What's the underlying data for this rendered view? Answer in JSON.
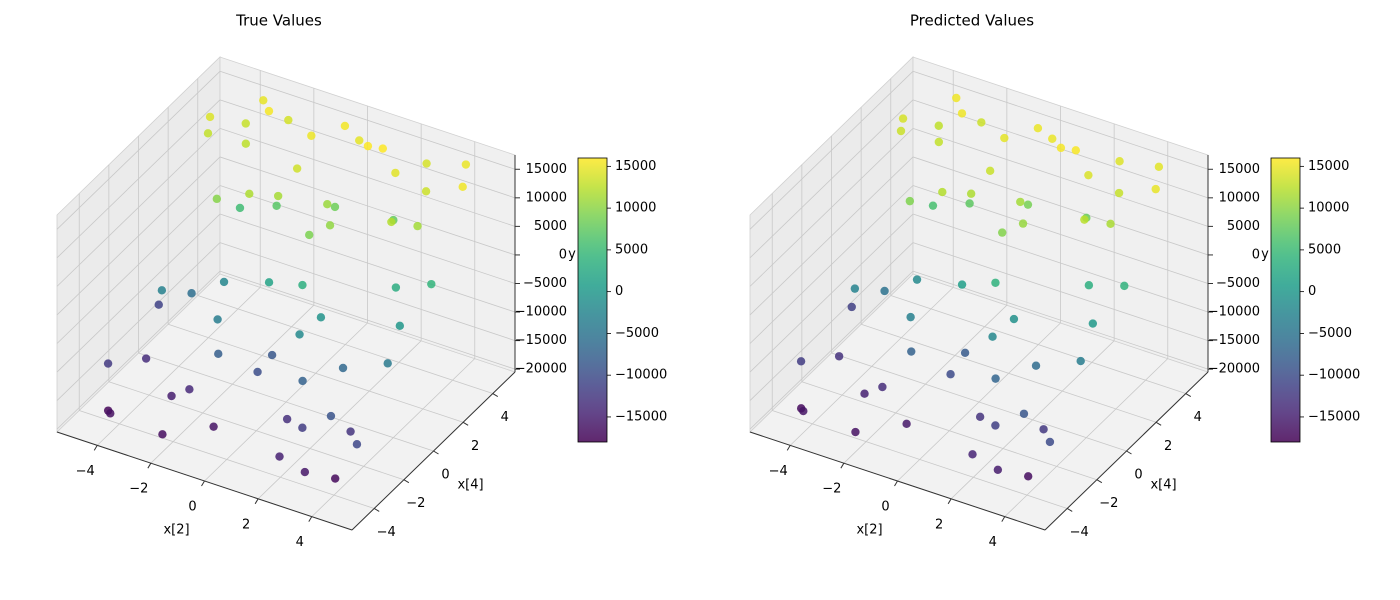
{
  "chart_data": [
    {
      "type": "scatter3d",
      "title": "True Values",
      "xlabel": "x[2]",
      "ylabel": "x[4]",
      "zlabel": "y",
      "x": [
        -4.6,
        -3.8,
        -2.9,
        -1.7,
        -0.6,
        0.5,
        1.8,
        2.7,
        3.9,
        4.7,
        -4.2,
        -3.1,
        -2.2,
        -1.1,
        0.1,
        1.2,
        2.3,
        3.4,
        4.4,
        -4.8,
        -3.5,
        -2.5,
        -1.4,
        -0.3,
        0.9,
        2.0,
        3.1,
        4.1,
        -4.0,
        -2.8,
        -1.9,
        -0.8,
        0.3,
        1.5,
        2.6,
        3.6,
        4.6,
        -4.4,
        -3.3,
        -2.0,
        -0.9,
        0.2,
        1.4,
        2.4,
        3.3,
        4.3,
        -4.7,
        -3.6,
        -2.6,
        -1.5,
        -0.4,
        0.7,
        1.7,
        2.9,
        3.8,
        4.8,
        -3.9,
        -1.2,
        0.6,
        2.2,
        3.5,
        -2.4,
        1.0,
        4.0
      ],
      "y": [
        3.2,
        -1.5,
        4.1,
        0.6,
        -3.8,
        2.4,
        -0.9,
        4.6,
        -2.7,
        1.3,
        -4.4,
        2.9,
        -0.2,
        3.7,
        -2.1,
        0.8,
        -4.6,
        3.3,
        -1.1,
        0.1,
        4.8,
        -3.2,
        1.9,
        -0.6,
        3.9,
        -2.5,
        1.5,
        -4.1,
        -2.2,
        0.4,
        -4.9,
        2.2,
        4.4,
        -1.8,
        -3.6,
        0.9,
        3.6,
        2.7,
        -0.4,
        -2.9,
        1.1,
        -1.3,
        4.0,
        2.9,
        -4.7,
        -0.1,
        -3.5,
        3.8,
        1.6,
        -1.9,
        4.7,
        0.3,
        -3.0,
        -1.4,
        2.0,
        -3.9,
        -4.8,
        -2.4,
        1.7,
        3.4,
        -3.3,
        4.5,
        -0.7,
        4.9
      ],
      "z": [
        14200,
        -3100,
        15600,
        11800,
        -16200,
        8400,
        -600,
        13900,
        -12800,
        4200,
        -17500,
        12600,
        -2400,
        15100,
        -9800,
        10300,
        -14900,
        13400,
        -4100,
        -11200,
        14800,
        -15300,
        6900,
        1500,
        15900,
        -7400,
        12100,
        -17200,
        -13600,
        9700,
        -16800,
        13600,
        14700,
        -1800,
        -11900,
        2900,
        15300,
        12900,
        -5600,
        -14100,
        11400,
        -8700,
        16000,
        7800,
        -15800,
        -200,
        -12300,
        13100,
        5400,
        -3600,
        15400,
        9100,
        -13300,
        -6500,
        11200,
        -10600,
        -16500,
        -7900,
        10800,
        14500,
        -9200,
        13800,
        3300,
        15000
      ],
      "xlim": [
        -5.5,
        5.5
      ],
      "ylim": [
        -5.5,
        5.5
      ],
      "zlim": [
        -20500,
        17500
      ],
      "xticks": [
        {
          "value": -4,
          "label": "−4"
        },
        {
          "value": -2,
          "label": "−2"
        },
        0,
        2,
        4
      ],
      "yticks": [
        {
          "value": -4,
          "label": "−4"
        },
        {
          "value": -2,
          "label": "−2"
        },
        0,
        2,
        4
      ],
      "zticks": [
        {
          "value": -20000,
          "label": "−20000"
        },
        {
          "value": -15000,
          "label": "−15000"
        },
        {
          "value": -10000,
          "label": "−10000"
        },
        {
          "value": -5000,
          "label": "−5000"
        },
        0,
        5000,
        10000,
        15000
      ],
      "colormap": "viridis",
      "clim": [
        -18000,
        16000
      ],
      "cticks": [
        {
          "value": -15000,
          "label": "−15000"
        },
        {
          "value": -10000,
          "label": "−10000"
        },
        {
          "value": -5000,
          "label": "−5000"
        },
        0,
        5000,
        10000,
        15000
      ],
      "grid": true
    },
    {
      "type": "scatter3d",
      "title": "Predicted Values",
      "xlabel": "x[2]",
      "ylabel": "x[4]",
      "zlabel": "y",
      "x": [
        -4.6,
        -3.8,
        -2.9,
        -1.7,
        -0.6,
        0.5,
        1.8,
        2.7,
        3.9,
        4.7,
        -4.2,
        -3.1,
        -2.2,
        -1.1,
        0.1,
        1.2,
        2.3,
        3.4,
        4.4,
        -4.8,
        -3.5,
        -2.5,
        -1.4,
        -0.3,
        0.9,
        2.0,
        3.1,
        4.1,
        -4.0,
        -2.8,
        -1.9,
        -0.8,
        0.3,
        1.5,
        2.6,
        3.6,
        4.6,
        -4.4,
        -3.3,
        -2.0,
        -0.9,
        0.2,
        1.4,
        2.4,
        3.3,
        4.3,
        -4.7,
        -3.6,
        -2.6,
        -1.5,
        -0.4,
        0.7,
        1.7,
        2.9,
        3.8,
        4.8,
        -3.9,
        -1.2,
        0.6,
        2.2,
        3.5,
        -2.4,
        1.0,
        4.0
      ],
      "y": [
        3.2,
        -1.5,
        4.1,
        0.6,
        -3.8,
        2.4,
        -0.9,
        4.6,
        -2.7,
        1.3,
        -4.4,
        2.9,
        -0.2,
        3.7,
        -2.1,
        0.8,
        -4.6,
        3.3,
        -1.1,
        0.1,
        4.8,
        -3.2,
        1.9,
        -0.6,
        3.9,
        -2.5,
        1.5,
        -4.1,
        -2.2,
        0.4,
        -4.9,
        2.2,
        4.4,
        -1.8,
        -3.6,
        0.9,
        3.6,
        2.7,
        -0.4,
        -2.9,
        1.1,
        -1.3,
        4.0,
        2.9,
        -4.7,
        -0.1,
        -3.5,
        3.8,
        1.6,
        -1.9,
        4.7,
        0.3,
        -3.0,
        -1.4,
        2.0,
        -3.9,
        -4.8,
        -2.4,
        1.7,
        3.4,
        -3.3,
        4.5,
        -0.7,
        4.9
      ],
      "z": [
        13900,
        -2800,
        15200,
        12100,
        -15700,
        8800,
        -900,
        14300,
        -12400,
        3900,
        -17100,
        12900,
        -2000,
        14700,
        -10200,
        10600,
        -14500,
        13100,
        -3700,
        -11600,
        15200,
        -14900,
        7300,
        1100,
        15600,
        -7000,
        12500,
        -16800,
        -13200,
        9300,
        -16400,
        13200,
        15000,
        -2200,
        -11500,
        3300,
        14900,
        13300,
        -5200,
        -13700,
        11800,
        -8300,
        15700,
        8200,
        -15400,
        200,
        -11900,
        12700,
        5800,
        -3200,
        15000,
        9500,
        -12900,
        -6100,
        11600,
        -10200,
        -16100,
        -7500,
        11200,
        14100,
        -8800,
        13400,
        3700,
        14600
      ],
      "xlim": [
        -5.5,
        5.5
      ],
      "ylim": [
        -5.5,
        5.5
      ],
      "zlim": [
        -20500,
        17500
      ],
      "xticks": [
        {
          "value": -4,
          "label": "−4"
        },
        {
          "value": -2,
          "label": "−2"
        },
        0,
        2,
        4
      ],
      "yticks": [
        {
          "value": -4,
          "label": "−4"
        },
        {
          "value": -2,
          "label": "−2"
        },
        0,
        2,
        4
      ],
      "zticks": [
        {
          "value": -20000,
          "label": "−20000"
        },
        {
          "value": -15000,
          "label": "−15000"
        },
        {
          "value": -10000,
          "label": "−10000"
        },
        {
          "value": -5000,
          "label": "−5000"
        },
        0,
        5000,
        10000,
        15000
      ],
      "colormap": "viridis",
      "clim": [
        -18000,
        16000
      ],
      "cticks": [
        {
          "value": -15000,
          "label": "−15000"
        },
        {
          "value": -10000,
          "label": "−10000"
        },
        {
          "value": -5000,
          "label": "−5000"
        },
        0,
        5000,
        10000,
        15000
      ],
      "grid": true
    }
  ]
}
